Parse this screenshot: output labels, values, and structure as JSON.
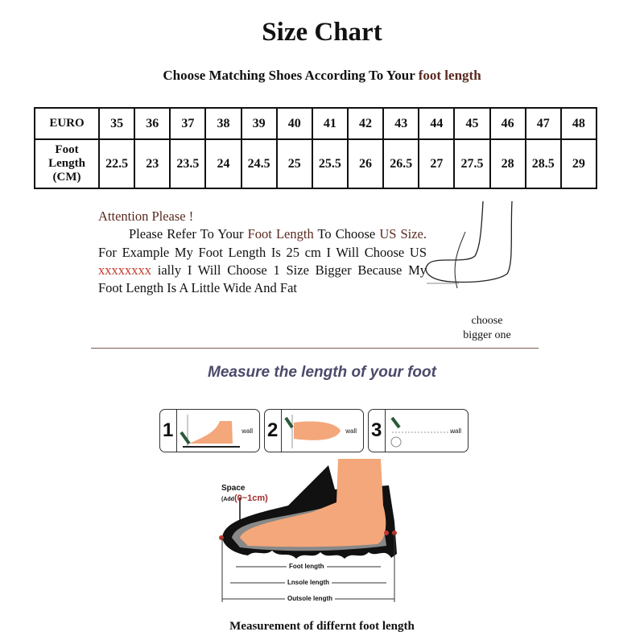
{
  "title": "Size Chart",
  "subtitle": {
    "prefix": "Choose Matching Shoes According To Your",
    "highlight": "foot length"
  },
  "table": {
    "row1_label": "EURO",
    "row2_label": [
      "Foot",
      "Length",
      "(CM)"
    ],
    "euro": [
      "35",
      "36",
      "37",
      "38",
      "39",
      "40",
      "41",
      "42",
      "43",
      "44",
      "45",
      "46",
      "47",
      "48"
    ],
    "foot_cm": [
      "22.5",
      "23",
      "23.5",
      "24",
      "24.5",
      "25",
      "25.5",
      "26",
      "26.5",
      "27",
      "27.5",
      "28",
      "28.5",
      "29"
    ]
  },
  "attention": {
    "heading": "Attention Please !",
    "p1": "Please Refer To Your",
    "h1": "Foot Length",
    "p2": "To Choose",
    "h2": "US Size.",
    "p3": "For Example My Foot Length Is 25 cm I Will Choose US",
    "red": "xxxxxxxx",
    "p4": "ially I Will Choose 1 Size Bigger Because My Foot Length Is A Little Wide And Fat"
  },
  "choose_note": [
    "choose",
    "bigger one"
  ],
  "measure_heading": "Measure the length of your foot",
  "steps": [
    {
      "n": "1",
      "wall": "wall"
    },
    {
      "n": "2",
      "wall": "wall"
    },
    {
      "n": "3",
      "wall": "wall"
    }
  ],
  "diagram": {
    "space": "Space",
    "add_prefix": "(Add",
    "add_value": "(0~1cm)",
    "foot_length": "Foot length",
    "insole_length": "Lnsole length",
    "outsole_length": "Outsole length"
  },
  "caption": "Measurement of differnt foot length",
  "colors": {
    "accent_brown": "#5a2a20",
    "red": "#c0392b",
    "skin": "#f4a77a",
    "heading": "#4a4a6a"
  }
}
